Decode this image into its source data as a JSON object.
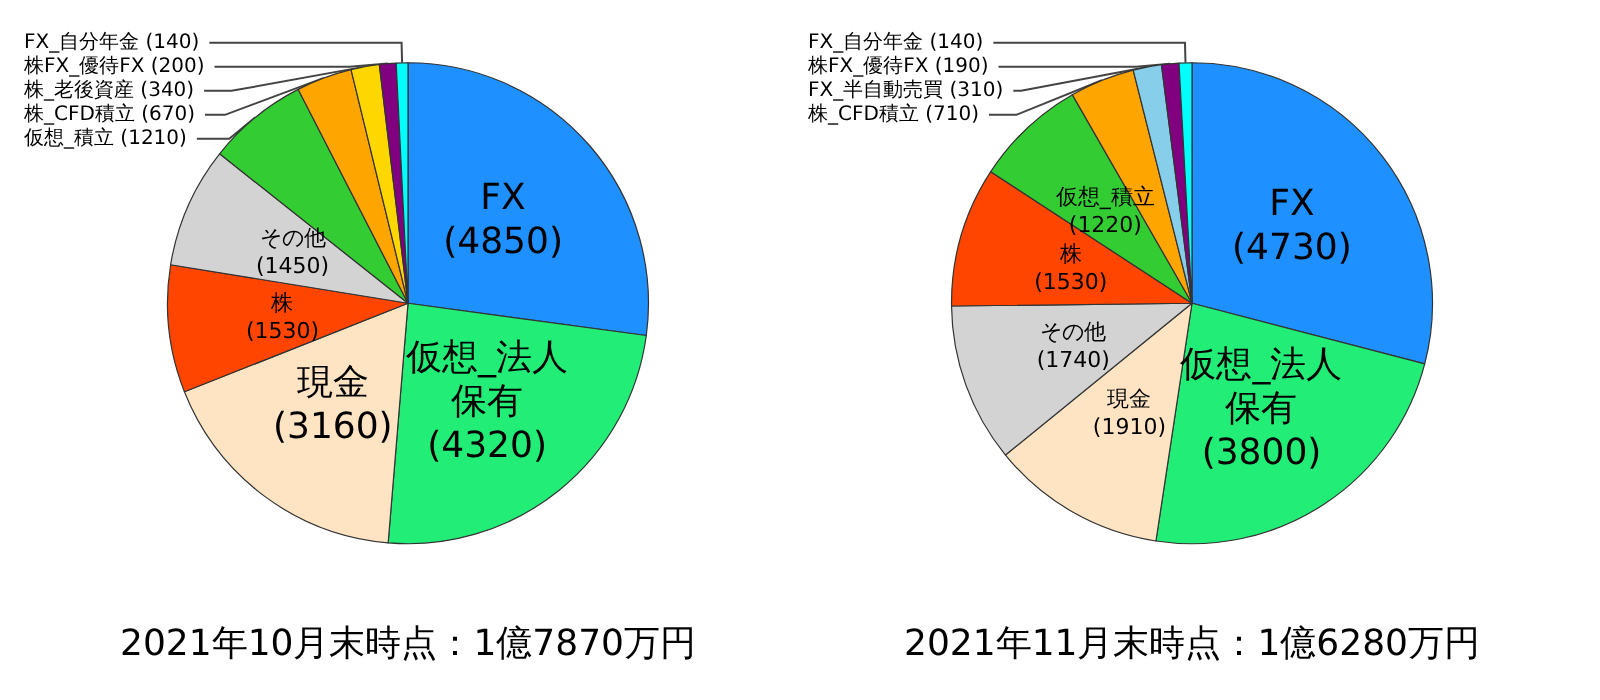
{
  "chart_data": [
    {
      "type": "pie",
      "title": "2021年10月末時点：1億7870万円",
      "categories": [
        "FX",
        "仮想_法人保有",
        "現金",
        "株",
        "その他",
        "仮想_積立",
        "株_CFD積立",
        "株_老後資産",
        "株FX_優待FX",
        "FX_自分年金"
      ],
      "values": [
        4850,
        4320,
        3160,
        1530,
        1450,
        1210,
        670,
        340,
        200,
        140
      ],
      "colors": [
        "#1e90ff",
        "#22ee77",
        "#ffe4c4",
        "#ff4500",
        "#d3d3d3",
        "#33cc33",
        "#ffa500",
        "#ffd700",
        "#800080",
        "#00ffff"
      ],
      "value_labels": [
        "(4850)",
        "(4320)",
        "(3160)",
        "(1530)",
        "(1450)",
        "(1210)",
        "(670)",
        "(340)",
        "(200)",
        "(140)"
      ],
      "legend": false
    },
    {
      "type": "pie",
      "title": "2021年11月末時点：1億6280万円",
      "categories": [
        "FX",
        "仮想_法人保有",
        "現金",
        "その他",
        "株",
        "仮想_積立",
        "株_CFD積立",
        "FX_半自動売買",
        "株FX_優待FX",
        "FX_自分年金"
      ],
      "values": [
        4730,
        3800,
        1910,
        1740,
        1530,
        1220,
        710,
        310,
        190,
        140
      ],
      "colors": [
        "#1e90ff",
        "#22ee77",
        "#ffe4c4",
        "#d3d3d3",
        "#ff4500",
        "#33cc33",
        "#ffa500",
        "#87ceeb",
        "#800080",
        "#00ffff"
      ],
      "value_labels": [
        "(4730)",
        "(3800)",
        "(1910)",
        "(1740)",
        "(1530)",
        "(1220)",
        "(710)",
        "(310)",
        "(190)",
        "(140)"
      ],
      "legend": false
    }
  ]
}
